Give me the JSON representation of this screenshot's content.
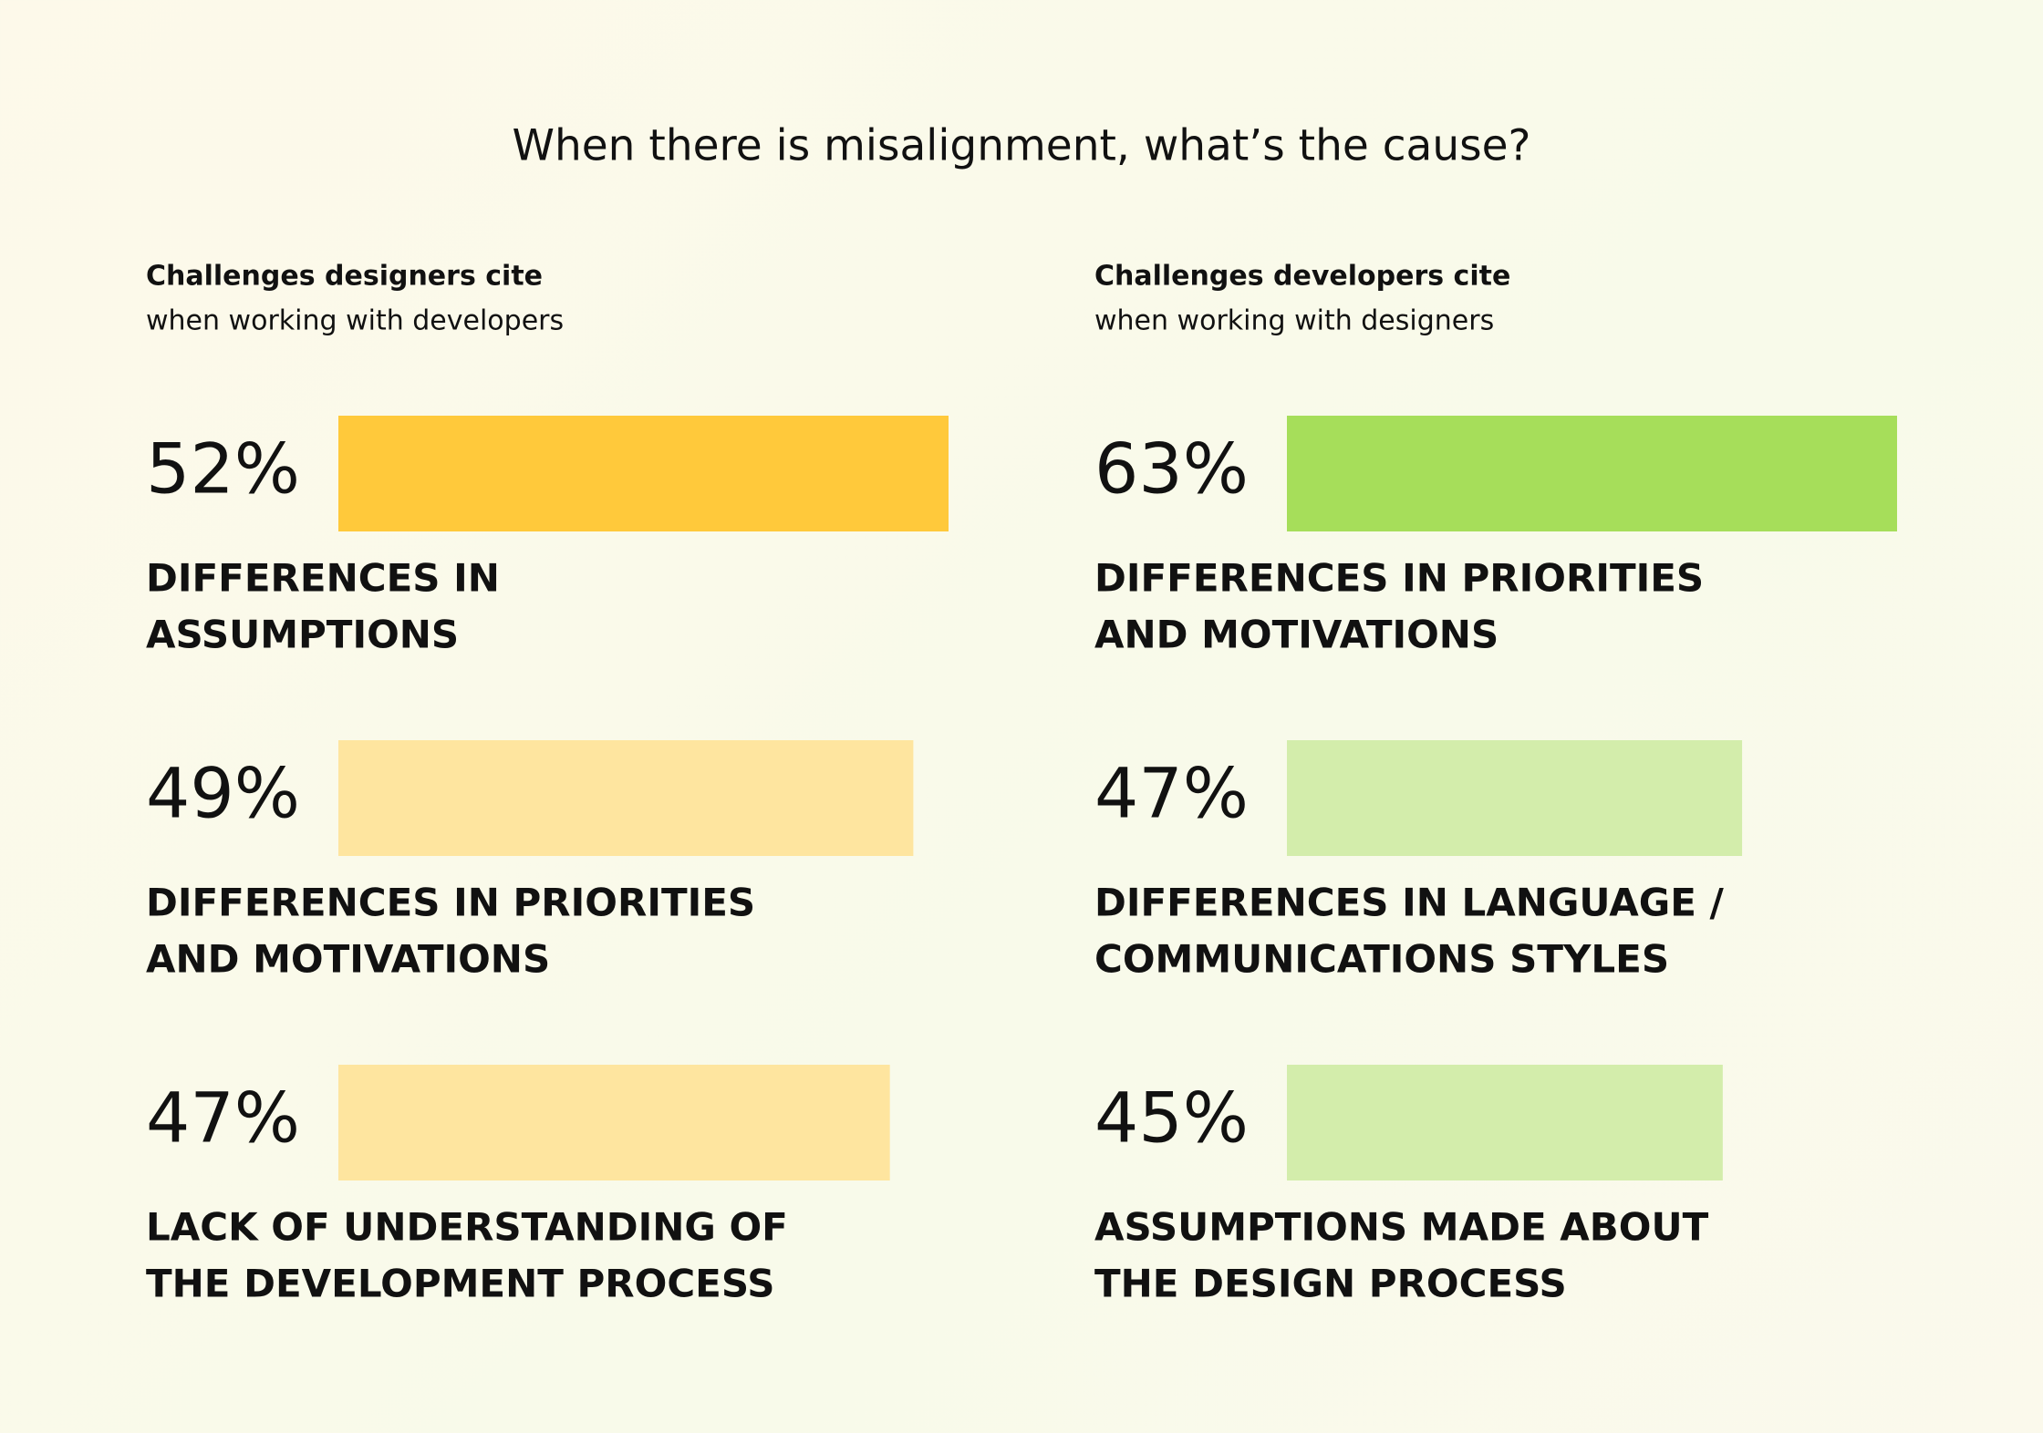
{
  "title": "When there is misalignment, what’s the cause?",
  "chart_data": [
    {
      "type": "bar",
      "title": "Challenges designers cite",
      "subtitle": "when working with developers",
      "categories": [
        [
          "DIFFERENCES IN",
          "ASSUMPTIONS"
        ],
        [
          "DIFFERENCES IN PRIORITIES",
          "AND MOTIVATIONS"
        ],
        [
          "LACK OF UNDERSTANDING OF",
          "THE DEVELOPMENT PROCESS"
        ]
      ],
      "values": [
        52,
        49,
        47
      ],
      "value_labels": [
        "52%",
        "49%",
        "47%"
      ],
      "colors": [
        "#ffc93b",
        "#fee59f",
        "#fee59f"
      ]
    },
    {
      "type": "bar",
      "title": "Challenges developers cite",
      "subtitle": "when working with designers",
      "categories": [
        [
          "DIFFERENCES IN PRIORITIES",
          "AND MOTIVATIONS"
        ],
        [
          "DIFFERENCES IN LANGUAGE /",
          "COMMUNICATIONS STYLES"
        ],
        [
          "ASSUMPTIONS MADE ABOUT",
          "THE DESIGN PROCESS"
        ]
      ],
      "values": [
        63,
        47,
        45
      ],
      "value_labels": [
        "63%",
        "47%",
        "45%"
      ],
      "colors": [
        "#a6de5a",
        "#d3edab",
        "#d3edab"
      ]
    }
  ]
}
